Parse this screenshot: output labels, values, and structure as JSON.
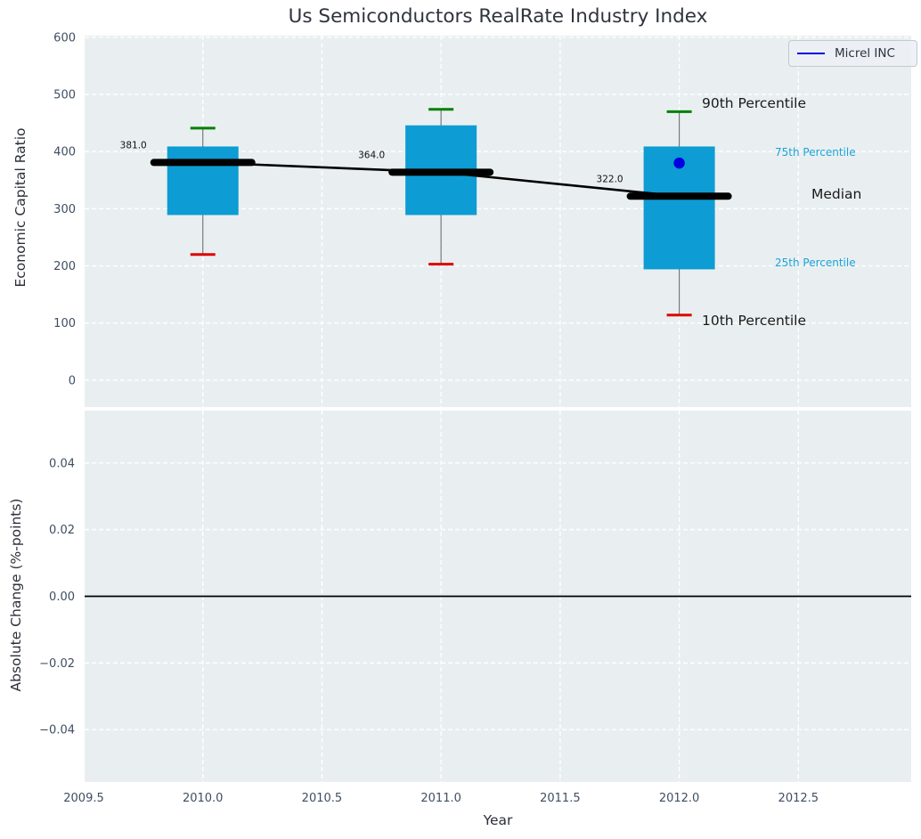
{
  "title": "Us Semiconductors RealRate Industry Index",
  "legend": {
    "label": "Micrel INC",
    "line_color": "#0000dd"
  },
  "colors": {
    "panel_bg": "#e9eff0",
    "grid": "#ffffff",
    "box_fill": "#0d9cd4",
    "whisker": "#777777",
    "cap_top": "#008000",
    "cap_bottom": "#dd0000",
    "median": "#000000",
    "point": "#0000e0",
    "tick_text": "#3f4e63",
    "annotation_dark": "#1a1a1a",
    "annotation_cyan": "#1ba3d8",
    "zero_line": "#000000"
  },
  "chart_data": [
    {
      "type": "boxplot",
      "title": "Us Semiconductors RealRate Industry Index",
      "xlabel": "Year",
      "ylabel": "Economic Capital Ratio",
      "x": [
        2010,
        2011,
        2012
      ],
      "series": [
        {
          "name": "10th Percentile",
          "values": [
            220,
            203,
            114
          ]
        },
        {
          "name": "25th Percentile",
          "values": [
            289,
            289,
            194
          ]
        },
        {
          "name": "Median",
          "values": [
            381,
            364,
            322
          ]
        },
        {
          "name": "75th Percentile",
          "values": [
            409,
            446,
            409
          ]
        },
        {
          "name": "90th Percentile",
          "values": [
            441,
            474,
            470
          ]
        }
      ],
      "median_labels": [
        "381.0",
        "364.0",
        "322.0"
      ],
      "points": [
        {
          "name": "Micrel INC",
          "x": 2012,
          "y": 380
        }
      ],
      "xlim": [
        2009.5,
        2012.97
      ],
      "ylim": [
        -47,
        603
      ],
      "xticks": [
        2009.5,
        2010.0,
        2010.5,
        2011.0,
        2011.5,
        2012.0,
        2012.5
      ],
      "xtick_labels": [
        "2009.5",
        "2010.0",
        "2010.5",
        "2011.0",
        "2011.5",
        "2012.0",
        "2012.5"
      ],
      "yticks": [
        0,
        100,
        200,
        300,
        400,
        500,
        600
      ],
      "ytick_labels": [
        "0",
        "100",
        "200",
        "300",
        "400",
        "500",
        "600"
      ],
      "grid": true,
      "legend_position": "upper right",
      "annotations": [
        {
          "text": "90th Percentile",
          "size": 15.5,
          "colorKey": "annotation_dark"
        },
        {
          "text": "75th Percentile",
          "size": 12,
          "colorKey": "annotation_cyan"
        },
        {
          "text": "Median",
          "size": 15.5,
          "colorKey": "annotation_dark"
        },
        {
          "text": "25th Percentile",
          "size": 12,
          "colorKey": "annotation_cyan"
        },
        {
          "text": "10th Percentile",
          "size": 15.5,
          "colorKey": "annotation_dark"
        }
      ]
    },
    {
      "type": "line",
      "xlabel": "Year",
      "ylabel": "Absolute Change (%-points)",
      "yticks": [
        0.04,
        0.02,
        0.0,
        -0.02,
        -0.04
      ],
      "ytick_labels": [
        "0.04",
        "0.02",
        "0.00",
        "−0.02",
        "−0.04"
      ],
      "ylim": [
        -0.0557,
        0.0557
      ],
      "grid": true,
      "zero_line": true,
      "values": []
    }
  ]
}
